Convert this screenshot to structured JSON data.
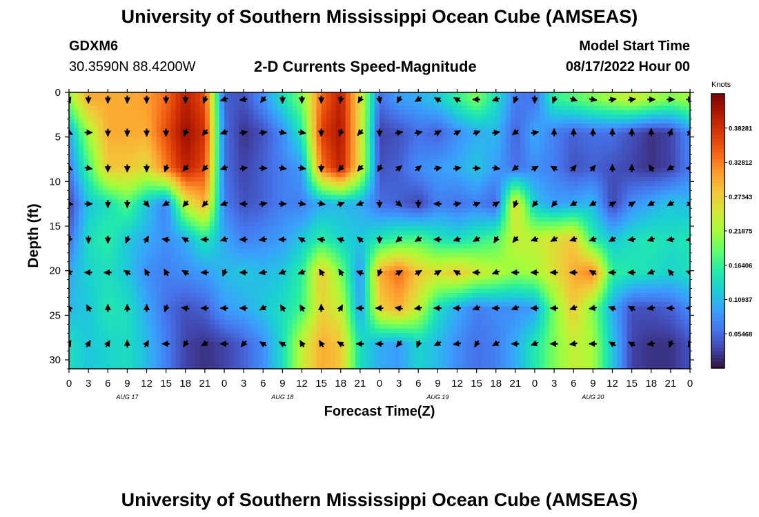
{
  "header": {
    "title": "University of Southern Mississippi Ocean Cube (AMSEAS)",
    "footer_title": "University of Southern Mississippi Ocean Cube (AMSEAS)",
    "station": "GDXM6",
    "coordinates": "30.3590N  88.4200W",
    "plot_title": "2-D Currents Speed-Magnitude",
    "model_start_label": "Model Start Time",
    "model_start_value": "08/17/2022 Hour 00"
  },
  "chart_data": {
    "type": "heatmap",
    "title": "2-D Currents Speed-Magnitude",
    "xlabel": "Forecast Time(Z)",
    "ylabel": "Depth (ft)",
    "x_ticks": [
      "0",
      "3",
      "6",
      "9",
      "12",
      "15",
      "18",
      "21",
      "0",
      "3",
      "6",
      "9",
      "12",
      "15",
      "18",
      "21",
      "0",
      "3",
      "6",
      "9",
      "12",
      "15",
      "18",
      "21",
      "0",
      "3",
      "6",
      "9",
      "12",
      "15",
      "18",
      "21",
      "0"
    ],
    "date_labels": [
      {
        "label": "AUG 17",
        "hour": 9
      },
      {
        "label": "AUG 18",
        "hour": 33
      },
      {
        "label": "AUG 19",
        "hour": 57
      },
      {
        "label": "AUG 20",
        "hour": 81
      }
    ],
    "xlim": [
      0,
      96
    ],
    "ylim": [
      0,
      31
    ],
    "y_ticks": [
      "0",
      "5",
      "10",
      "15",
      "20",
      "25",
      "30"
    ],
    "colorbar": {
      "label": "Knots",
      "ticks": [
        "0.05468",
        "0.10937",
        "0.16406",
        "0.21875",
        "0.27343",
        "0.32812",
        "0.38281"
      ],
      "range": [
        0,
        0.4375
      ],
      "colors": [
        "#30123b",
        "#4145ab",
        "#4675ed",
        "#39a2fc",
        "#1bcfd4",
        "#24eca6",
        "#61fc6c",
        "#a4fc3b",
        "#d1e834",
        "#f3c63a",
        "#fe9b2d",
        "#f36315",
        "#d93806",
        "#b11901",
        "#7a0402"
      ]
    },
    "depth_levels": [
      0.8,
      4.5,
      8.5,
      12.5,
      16.5,
      20.2,
      24.2,
      28.2
    ],
    "time_hours": [
      0,
      3,
      6,
      9,
      12,
      15,
      18,
      21,
      24,
      27,
      30,
      33,
      36,
      39,
      42,
      45,
      48,
      51,
      54,
      57,
      60,
      63,
      66,
      69,
      72,
      75,
      78,
      81,
      84,
      87,
      90,
      93,
      96
    ],
    "speed_knots": [
      [
        0.21,
        0.3,
        0.3,
        0.3,
        0.31,
        0.34,
        0.4,
        0.36,
        0.05,
        0.04,
        0.08,
        0.14,
        0.2,
        0.34,
        0.4,
        0.26,
        0.06,
        0.09,
        0.1,
        0.12,
        0.16,
        0.2,
        0.14,
        0.07,
        0.06,
        0.16,
        0.18,
        0.2,
        0.22,
        0.24,
        0.22,
        0.2,
        0.22
      ],
      [
        0.1,
        0.22,
        0.3,
        0.3,
        0.3,
        0.36,
        0.42,
        0.38,
        0.06,
        0.02,
        0.04,
        0.08,
        0.15,
        0.37,
        0.41,
        0.26,
        0.03,
        0.04,
        0.06,
        0.05,
        0.08,
        0.1,
        0.11,
        0.05,
        0.1,
        0.07,
        0.05,
        0.06,
        0.06,
        0.04,
        0.02,
        0.03,
        0.08
      ],
      [
        0.07,
        0.17,
        0.28,
        0.28,
        0.26,
        0.33,
        0.4,
        0.36,
        0.06,
        0.03,
        0.05,
        0.07,
        0.09,
        0.33,
        0.4,
        0.26,
        0.04,
        0.05,
        0.08,
        0.09,
        0.1,
        0.12,
        0.09,
        0.06,
        0.08,
        0.07,
        0.04,
        0.05,
        0.04,
        0.03,
        0.02,
        0.03,
        0.07
      ],
      [
        0.03,
        0.12,
        0.14,
        0.18,
        0.12,
        0.07,
        0.24,
        0.3,
        0.07,
        0.04,
        0.05,
        0.07,
        0.07,
        0.1,
        0.11,
        0.1,
        0.06,
        0.05,
        0.03,
        0.07,
        0.06,
        0.07,
        0.05,
        0.27,
        0.12,
        0.09,
        0.1,
        0.11,
        0.03,
        0.08,
        0.1,
        0.12,
        0.11
      ],
      [
        0.06,
        0.14,
        0.16,
        0.12,
        0.1,
        0.08,
        0.1,
        0.15,
        0.1,
        0.07,
        0.08,
        0.09,
        0.12,
        0.16,
        0.13,
        0.12,
        0.15,
        0.17,
        0.18,
        0.15,
        0.14,
        0.16,
        0.18,
        0.24,
        0.24,
        0.26,
        0.28,
        0.16,
        0.12,
        0.14,
        0.15,
        0.14,
        0.15
      ],
      [
        0.1,
        0.13,
        0.14,
        0.12,
        0.08,
        0.07,
        0.08,
        0.09,
        0.11,
        0.12,
        0.11,
        0.12,
        0.16,
        0.28,
        0.2,
        0.08,
        0.3,
        0.34,
        0.28,
        0.26,
        0.28,
        0.25,
        0.23,
        0.21,
        0.22,
        0.26,
        0.3,
        0.33,
        0.16,
        0.15,
        0.14,
        0.13,
        0.14
      ],
      [
        0.11,
        0.12,
        0.15,
        0.14,
        0.1,
        0.06,
        0.04,
        0.05,
        0.09,
        0.1,
        0.12,
        0.14,
        0.17,
        0.27,
        0.24,
        0.09,
        0.27,
        0.3,
        0.24,
        0.14,
        0.1,
        0.07,
        0.08,
        0.08,
        0.09,
        0.2,
        0.28,
        0.2,
        0.1,
        0.04,
        0.04,
        0.05,
        0.08
      ],
      [
        0.14,
        0.12,
        0.13,
        0.14,
        0.11,
        0.07,
        0.03,
        0.02,
        0.03,
        0.05,
        0.08,
        0.14,
        0.24,
        0.3,
        0.28,
        0.14,
        0.1,
        0.09,
        0.13,
        0.11,
        0.08,
        0.06,
        0.07,
        0.1,
        0.15,
        0.2,
        0.24,
        0.22,
        0.12,
        0.03,
        0.02,
        0.02,
        0.04
      ]
    ],
    "direction_deg": [
      [
        160,
        180,
        180,
        180,
        180,
        180,
        180,
        200,
        250,
        260,
        220,
        180,
        180,
        180,
        190,
        210,
        170,
        210,
        240,
        300,
        300,
        270,
        250,
        200,
        180,
        200,
        110,
        100,
        80,
        80,
        90,
        90,
        90
      ],
      [
        120,
        90,
        180,
        180,
        180,
        180,
        200,
        220,
        250,
        80,
        80,
        100,
        100,
        180,
        200,
        220,
        180,
        80,
        80,
        60,
        60,
        70,
        80,
        230,
        80,
        0,
        0,
        0,
        0,
        0,
        0,
        20,
        40
      ],
      [
        120,
        100,
        180,
        180,
        180,
        200,
        220,
        220,
        250,
        80,
        90,
        100,
        100,
        180,
        220,
        220,
        210,
        50,
        50,
        80,
        80,
        90,
        100,
        230,
        60,
        300,
        40,
        40,
        0,
        0,
        330,
        240,
        270
      ],
      [
        100,
        90,
        180,
        180,
        140,
        240,
        220,
        220,
        250,
        270,
        80,
        90,
        100,
        100,
        70,
        250,
        180,
        130,
        180,
        270,
        80,
        70,
        60,
        200,
        220,
        220,
        240,
        240,
        60,
        60,
        240,
        240,
        60
      ],
      [
        200,
        180,
        180,
        200,
        30,
        280,
        300,
        270,
        250,
        270,
        260,
        270,
        300,
        280,
        290,
        310,
        180,
        230,
        240,
        270,
        250,
        240,
        210,
        220,
        250,
        240,
        250,
        250,
        240,
        260,
        250,
        260,
        260
      ],
      [
        250,
        270,
        270,
        300,
        330,
        330,
        300,
        270,
        200,
        270,
        260,
        250,
        250,
        330,
        330,
        290,
        200,
        60,
        60,
        60,
        300,
        270,
        250,
        270,
        270,
        270,
        270,
        300,
        270,
        270,
        250,
        320,
        290
      ],
      [
        330,
        330,
        0,
        0,
        0,
        200,
        280,
        270,
        270,
        270,
        240,
        330,
        330,
        0,
        30,
        270,
        270,
        280,
        260,
        270,
        270,
        250,
        270,
        250,
        270,
        270,
        250,
        260,
        290,
        300,
        260,
        270,
        270
      ],
      [
        30,
        30,
        30,
        0,
        30,
        270,
        210,
        240,
        270,
        220,
        300,
        300,
        330,
        330,
        300,
        270,
        270,
        220,
        200,
        240,
        260,
        210,
        240,
        270,
        250,
        270,
        260,
        270,
        300,
        300,
        260,
        200,
        210
      ]
    ]
  }
}
